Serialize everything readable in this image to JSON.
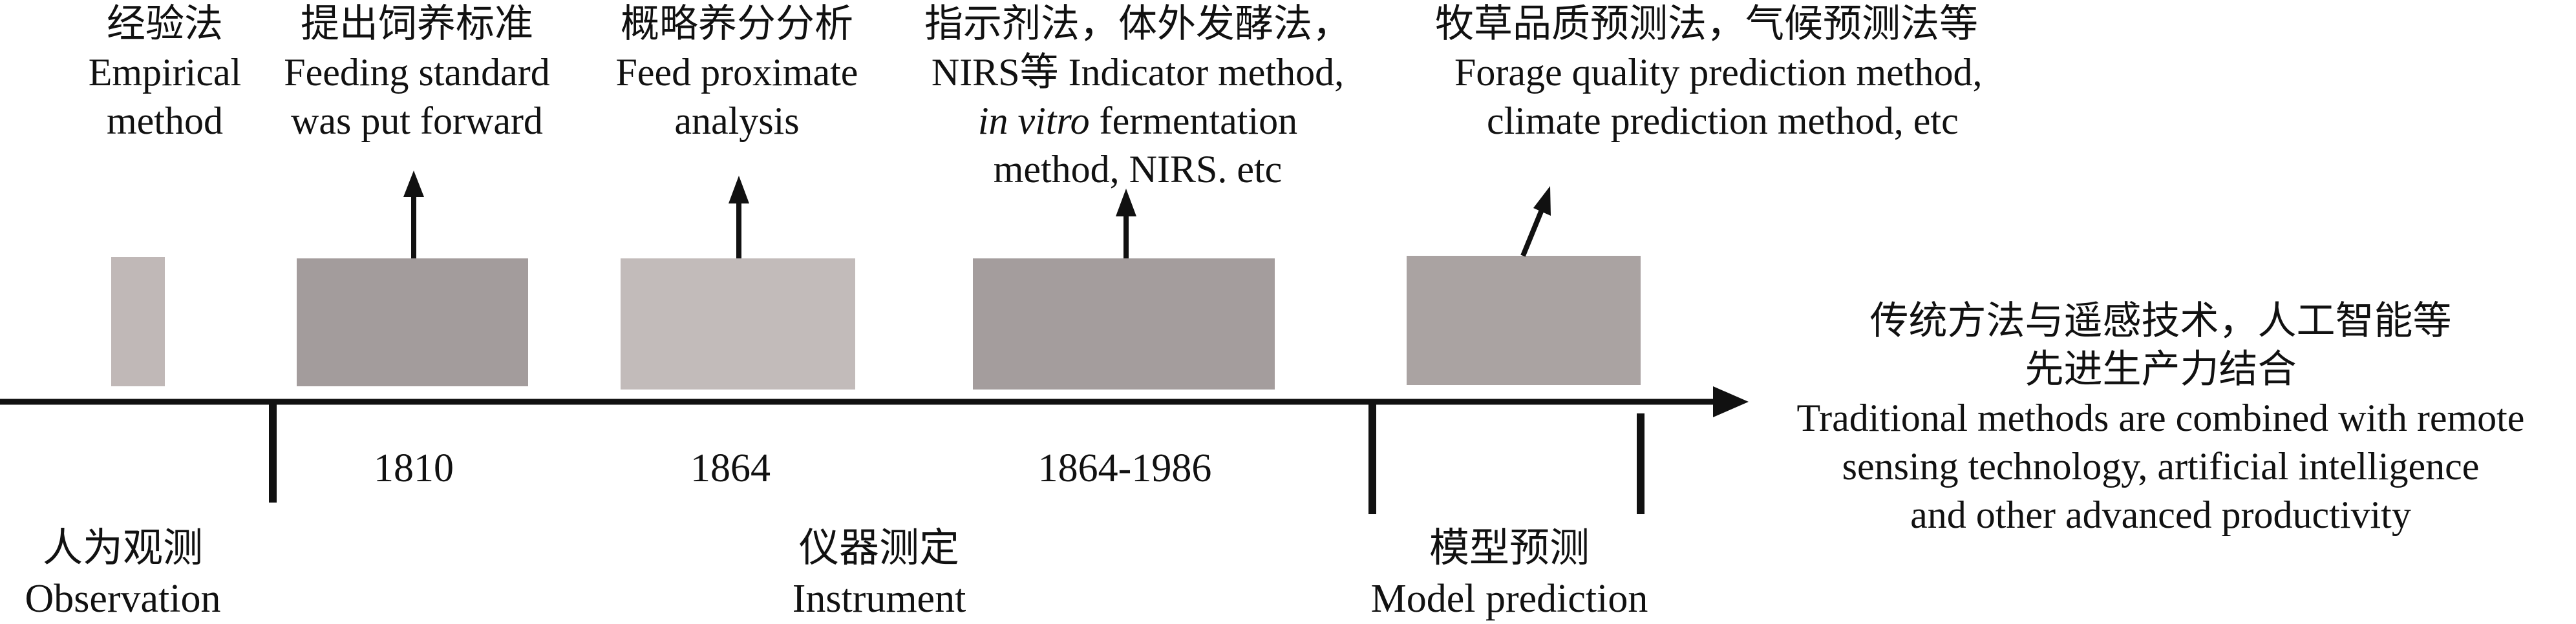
{
  "stages": [
    {
      "zh": "经验法",
      "en": [
        "Empirical",
        "method"
      ]
    },
    {
      "zh": "提出饲养标准",
      "en": [
        "Feeding standard",
        "was put forward"
      ]
    },
    {
      "zh": "概略养分分析",
      "en": [
        "Feed proximate",
        "analysis"
      ]
    },
    {
      "zh": "指示剂法，体外发酵法，",
      "en": [
        "NIRS等 Indicator method,",
        "in vitro",
        " fermentation",
        "method, NIRS. etc"
      ]
    },
    {
      "zh": "牧草品质预测法，气候预测法等",
      "en": [
        "Forage quality prediction method,",
        "climate prediction method, etc"
      ]
    }
  ],
  "years": [
    "1810",
    "1864",
    "1864-1986"
  ],
  "eras": [
    {
      "zh": "人为观测",
      "en": "Observation"
    },
    {
      "zh": "仪器测定",
      "en": "Instrument"
    },
    {
      "zh": "模型预测",
      "en": "Model prediction"
    }
  ],
  "future": {
    "zh": [
      "传统方法与遥感技术，人工智能等",
      "先进生产力结合"
    ],
    "en": [
      "Traditional methods are combined with remote",
      "sensing technology, artificial intelligence",
      "and other advanced productivity"
    ]
  },
  "colors": {
    "box_light": "#c0b8b7",
    "box_mid": "#b4acab",
    "box_dark": "#9e9696",
    "axis": "#111111"
  }
}
